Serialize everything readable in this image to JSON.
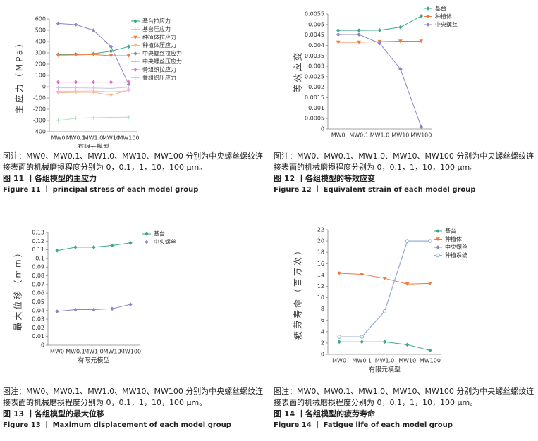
{
  "chart_data": [
    {
      "type": "line",
      "ylabel": "主应力（MPa）",
      "xlabel": "有限元模型",
      "categories": [
        "MW0",
        "MW0.1",
        "MW1.0",
        "MW10",
        "MW100"
      ],
      "ylim": [
        -400,
        600
      ],
      "yticks": [
        -400,
        -300,
        -200,
        -100,
        0,
        100,
        200,
        300,
        400,
        500,
        600
      ],
      "series": [
        {
          "name": "基台拉应力",
          "color": "#3aaa8a",
          "marker": "diamond",
          "values": [
            285,
            288,
            292,
            315,
            355
          ]
        },
        {
          "name": "基台压应力",
          "color": "#b5e0c0",
          "marker": "plus",
          "values": [
            -300,
            -280,
            -275,
            -272,
            -270
          ]
        },
        {
          "name": "种植体拉应力",
          "color": "#f07a3c",
          "marker": "triangle",
          "values": [
            280,
            282,
            285,
            275,
            275
          ]
        },
        {
          "name": "种植体压应力",
          "color": "#f7b98f",
          "marker": "triangle",
          "values": [
            -55,
            -50,
            -50,
            -75,
            -30
          ]
        },
        {
          "name": "中央螺丝拉应力",
          "color": "#8a86c2",
          "marker": "diamond",
          "values": [
            560,
            550,
            500,
            355,
            20
          ]
        },
        {
          "name": "中央螺丝压应力",
          "color": "#c8c6e6",
          "marker": "plus",
          "values": [
            -10,
            -10,
            -12,
            -15,
            -5
          ]
        },
        {
          "name": "骨组织拉应力",
          "color": "#e070c0",
          "marker": "diamond",
          "values": [
            40,
            40,
            40,
            40,
            40
          ]
        },
        {
          "name": "骨组织压应力",
          "color": "#f0b8dc",
          "marker": "plus",
          "values": [
            -40,
            -40,
            -38,
            -45,
            -35
          ]
        }
      ]
    },
    {
      "type": "line",
      "ylabel": "等效应变",
      "categories": [
        "MW0",
        "MW0.1",
        "MW1.0",
        "MW10",
        "MW100"
      ],
      "ylim": [
        0,
        0.0055
      ],
      "yticks": [
        0,
        0.0005,
        0.001,
        0.0015,
        0.002,
        0.0025,
        0.003,
        0.0035,
        0.004,
        0.0045,
        0.005,
        0.0055
      ],
      "series": [
        {
          "name": "基台",
          "color": "#3aaa8a",
          "marker": "diamond",
          "values": [
            0.00472,
            0.00472,
            0.00473,
            0.00487,
            0.0054
          ]
        },
        {
          "name": "种植体",
          "color": "#f07a3c",
          "marker": "triangle",
          "values": [
            0.00415,
            0.00415,
            0.00418,
            0.0042,
            0.0042
          ]
        },
        {
          "name": "中央螺丝",
          "color": "#8a86c2",
          "marker": "diamond",
          "values": [
            0.00452,
            0.00452,
            0.0041,
            0.00287,
            0.0001
          ]
        }
      ]
    },
    {
      "type": "line",
      "ylabel": "最大位移（mm）",
      "xlabel": "有限元模型",
      "categories": [
        "MW0",
        "MW0.1",
        "MW1.0",
        "MW10",
        "MW100"
      ],
      "ylim": [
        0,
        0.13
      ],
      "yticks": [
        0,
        0.01,
        0.02,
        0.03,
        0.04,
        0.05,
        0.06,
        0.07,
        0.08,
        0.09,
        0.1,
        0.11,
        0.12,
        0.13
      ],
      "series": [
        {
          "name": "基台",
          "color": "#3aaa8a",
          "marker": "diamond",
          "values": [
            0.109,
            0.113,
            0.113,
            0.115,
            0.118
          ]
        },
        {
          "name": "中央螺丝",
          "color": "#8a86c2",
          "marker": "diamond",
          "values": [
            0.039,
            0.041,
            0.041,
            0.042,
            0.047
          ]
        }
      ]
    },
    {
      "type": "line",
      "ylabel": "疲劳寿命（百万次）",
      "xlabel": "有限元模型",
      "categories": [
        "MW0",
        "MW0.1",
        "MW1.0",
        "MW10",
        "MW100"
      ],
      "ylim": [
        0,
        22
      ],
      "yticks": [
        0,
        2,
        4,
        6,
        8,
        10,
        12,
        14,
        16,
        18,
        20,
        22
      ],
      "series": [
        {
          "name": "基台",
          "color": "#3aaa8a",
          "marker": "diamond",
          "values": [
            2.2,
            2.2,
            2.2,
            1.7,
            0.7
          ]
        },
        {
          "name": "种植体",
          "color": "#f07a3c",
          "marker": "triangle",
          "values": [
            14.3,
            14.1,
            13.4,
            12.4,
            12.5
          ]
        },
        {
          "name": "中央螺丝",
          "color": "#8a86c2",
          "marker": "diamond",
          "values": [
            3.1,
            3.1,
            7.6,
            20,
            20
          ]
        },
        {
          "name": "种植系统",
          "color": "#8fb0d8",
          "marker": "circle",
          "values": [
            3.1,
            3.1,
            7.6,
            20,
            20
          ]
        }
      ]
    }
  ],
  "captions": [
    {
      "note": "图注：MW0、MW0.1、MW1.0、MW10、MW100 分别为中央螺丝螺纹连接表面的机械磨损程度分别为 0，0.1，1，10，100 μm。",
      "title": "图 11 丨各组模型的主应力",
      "title_en": "Figure 11 丨 principal stress of each model group"
    },
    {
      "note": "图注：MW0、MW0.1、MW1.0、MW10、MW100 分别为中央螺丝螺纹连接表面的机械磨损程度分别为 0，0.1，1，10，100 μm。",
      "title": "图 12 丨各组模型的等效应变",
      "title_en": "Figure 12 丨 Equivalent strain of each model group"
    },
    {
      "note": "图注：MW0、MW0.1、MW1.0、MW10、MW100 分别为中央螺丝螺纹连接表面的机械磨损程度分别为 0，0.1，1，10，100 μm。",
      "title": "图 13 丨各组模型的最大位移",
      "title_en": "Figure 13 丨 Maximum displacement of each model group"
    },
    {
      "note": "图注：MW0、MW0.1、MW1.0、MW10、MW100 分别为中央螺丝螺纹连接表面的机械磨损程度分别为 0，0.1，1，10，100 μm。",
      "title": "图 14 丨各组模型的疲劳寿命",
      "title_en": "Figure 14 丨 Fatigue life of each model group"
    }
  ]
}
